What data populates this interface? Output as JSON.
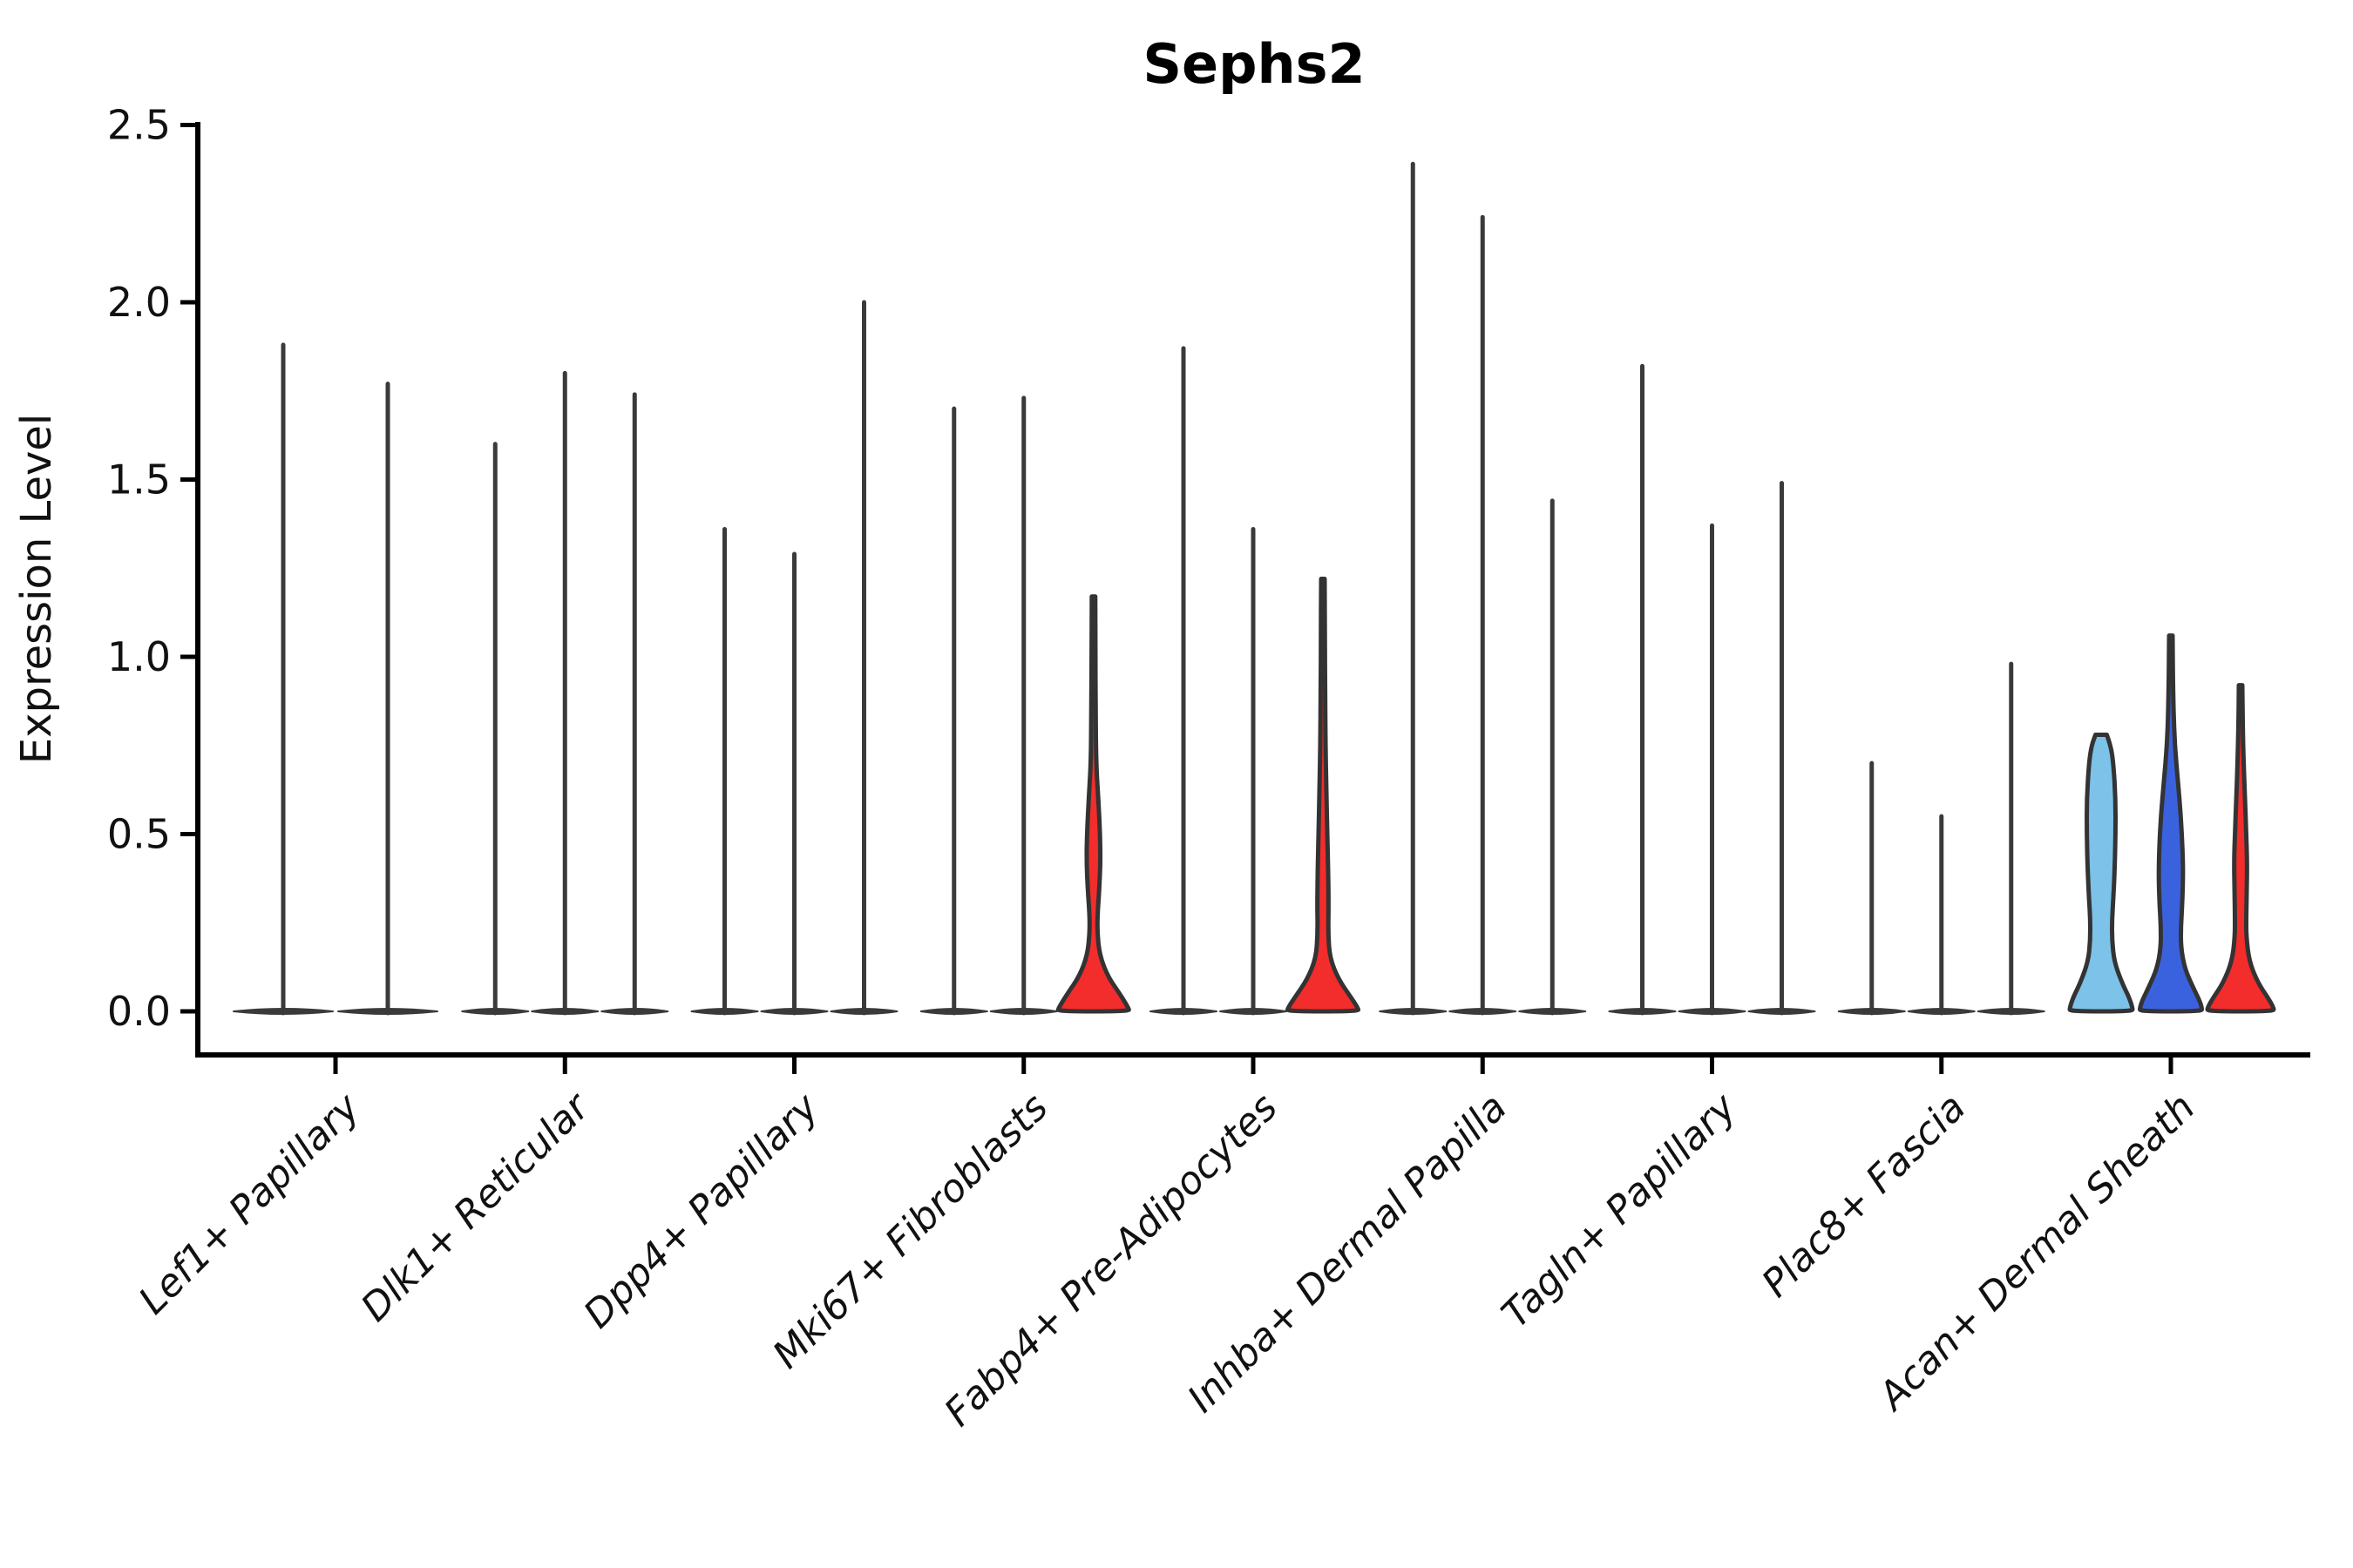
{
  "figure": {
    "background": "#ffffff"
  },
  "chart_data": {
    "type": "violin",
    "title": "Sephs2",
    "ylabel": "Expression Level",
    "xlabel": "",
    "ylim": [
      -0.12,
      2.51
    ],
    "yticks": [
      0.0,
      0.5,
      1.0,
      1.5,
      2.0,
      2.5
    ],
    "grid": false,
    "legend": "none",
    "categories": [
      "Lef1+ Papillary",
      "Dlk1+ Reticular",
      "Dpp4+ Papillary",
      "Mki67+ Fibroblasts",
      "Fabp4+ Pre-Adipocytes",
      "Inhba+ Dermal Papilla",
      "Tagln+ Papillary",
      "Plac8+ Fascia",
      "Acan+ Dermal Sheath"
    ],
    "colors": {
      "violin_line": "#333333",
      "needle": "#3a3a3a",
      "axis": "#000000",
      "highlight_red": "#F32C2C",
      "highlight_skyblue": "#7DC2E8",
      "highlight_blue": "#3B62DE"
    },
    "groups": [
      {
        "category": "Lef1+ Papillary",
        "violins": [
          {
            "style": "needle",
            "max": 1.88
          },
          {
            "style": "needle",
            "max": 1.77
          }
        ]
      },
      {
        "category": "Dlk1+ Reticular",
        "violins": [
          {
            "style": "needle",
            "max": 1.6
          },
          {
            "style": "needle",
            "max": 1.8
          },
          {
            "style": "needle",
            "max": 1.74
          }
        ]
      },
      {
        "category": "Dpp4+ Papillary",
        "violins": [
          {
            "style": "needle",
            "max": 1.36
          },
          {
            "style": "needle",
            "max": 1.29
          },
          {
            "style": "needle",
            "max": 2.0
          }
        ]
      },
      {
        "category": "Mki67+ Fibroblasts",
        "violins": [
          {
            "style": "needle",
            "max": 1.7
          },
          {
            "style": "needle",
            "max": 1.73
          },
          {
            "style": "filled",
            "max": 1.17,
            "fill": "#F32C2C",
            "profile": [
              [
                1.17,
                2
              ],
              [
                1.0,
                2.2
              ],
              [
                0.85,
                2.5
              ],
              [
                0.7,
                3
              ],
              [
                0.6,
                5.5
              ],
              [
                0.5,
                7.5
              ],
              [
                0.42,
                8
              ],
              [
                0.34,
                6.5
              ],
              [
                0.27,
                4.5
              ],
              [
                0.22,
                4.5
              ],
              [
                0.16,
                7
              ],
              [
                0.1,
                16
              ],
              [
                0.05,
                30
              ],
              [
                0.01,
                40
              ],
              [
                0,
                41
              ]
            ]
          }
        ]
      },
      {
        "category": "Fabp4+ Pre-Adipocytes",
        "violins": [
          {
            "style": "needle",
            "max": 1.87
          },
          {
            "style": "needle",
            "max": 1.36
          },
          {
            "style": "filled",
            "max": 1.22,
            "fill": "#F32C2C",
            "profile": [
              [
                1.22,
                2
              ],
              [
                1.05,
                2.3
              ],
              [
                0.9,
                2.6
              ],
              [
                0.75,
                3
              ],
              [
                0.62,
                4
              ],
              [
                0.5,
                5
              ],
              [
                0.4,
                6
              ],
              [
                0.3,
                6.5
              ],
              [
                0.22,
                6
              ],
              [
                0.15,
                8
              ],
              [
                0.09,
                18
              ],
              [
                0.04,
                32
              ],
              [
                0.01,
                40
              ],
              [
                0,
                41
              ]
            ]
          }
        ]
      },
      {
        "category": "Inhba+ Dermal Papilla",
        "violins": [
          {
            "style": "needle",
            "max": 2.39
          },
          {
            "style": "needle",
            "max": 2.24
          },
          {
            "style": "needle",
            "max": 1.44
          }
        ]
      },
      {
        "category": "Tagln+ Papillary",
        "violins": [
          {
            "style": "needle",
            "max": 1.82
          },
          {
            "style": "needle",
            "max": 1.37
          },
          {
            "style": "needle",
            "max": 1.49
          }
        ]
      },
      {
        "category": "Plac8+ Fascia",
        "violins": [
          {
            "style": "needle",
            "max": 0.7
          },
          {
            "style": "needle",
            "max": 0.55
          },
          {
            "style": "needle",
            "max": 0.98
          }
        ]
      },
      {
        "category": "Acan+ Dermal Sheath",
        "violins": [
          {
            "style": "filled",
            "max": 0.78,
            "fill": "#7DC2E8",
            "flat_top": true,
            "profile": [
              [
                0.78,
                6.5
              ],
              [
                0.75,
                11
              ],
              [
                0.7,
                14
              ],
              [
                0.6,
                16.5
              ],
              [
                0.5,
                16.5
              ],
              [
                0.4,
                15.5
              ],
              [
                0.32,
                14
              ],
              [
                0.26,
                12.5
              ],
              [
                0.2,
                12.5
              ],
              [
                0.14,
                15
              ],
              [
                0.08,
                24
              ],
              [
                0.04,
                32
              ],
              [
                0.01,
                36
              ],
              [
                0,
                36
              ]
            ]
          },
          {
            "style": "filled",
            "max": 1.06,
            "fill": "#3B62DE",
            "profile": [
              [
                1.06,
                2
              ],
              [
                0.95,
                2.3
              ],
              [
                0.85,
                3
              ],
              [
                0.75,
                4.5
              ],
              [
                0.65,
                8
              ],
              [
                0.55,
                11.5
              ],
              [
                0.45,
                13.5
              ],
              [
                0.38,
                14
              ],
              [
                0.3,
                13
              ],
              [
                0.24,
                11.5
              ],
              [
                0.18,
                11.5
              ],
              [
                0.12,
                16
              ],
              [
                0.07,
                25
              ],
              [
                0.03,
                33
              ],
              [
                0.01,
                35.5
              ],
              [
                0,
                35.5
              ]
            ]
          },
          {
            "style": "filled",
            "max": 0.92,
            "fill": "#F32C2C",
            "profile": [
              [
                0.92,
                2
              ],
              [
                0.8,
                2.5
              ],
              [
                0.7,
                3.5
              ],
              [
                0.6,
                5
              ],
              [
                0.5,
                6.5
              ],
              [
                0.42,
                7.5
              ],
              [
                0.34,
                7
              ],
              [
                0.27,
                6.5
              ],
              [
                0.21,
                6.5
              ],
              [
                0.14,
                10
              ],
              [
                0.08,
                20
              ],
              [
                0.04,
                31
              ],
              [
                0.01,
                38
              ],
              [
                0,
                38
              ]
            ]
          }
        ]
      }
    ]
  }
}
